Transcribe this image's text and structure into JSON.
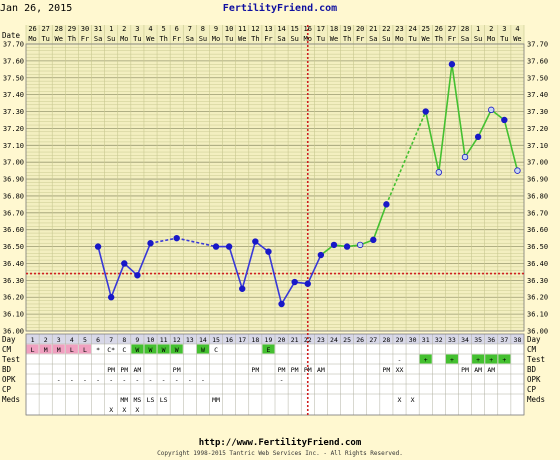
{
  "header": {
    "date_label": "Jan 26, 2015",
    "site": "FertilityFriend.com"
  },
  "footer": {
    "url": "http://www.FertilityFriend.com",
    "copyright": "Copyright 1998-2015 Tantric Web Services Inc. - All Rights Reserved."
  },
  "colors": {
    "grid_line": "#c8c890",
    "plot_bg": "#f3efc0",
    "row_bg": "#ffffff",
    "pre_ov_line": "#3838d8",
    "post_ov_line": "#44c030",
    "coverline": "#d02020",
    "ovulation_line": "#d02020",
    "menses": "#f0a0c0",
    "fertile_cm": "#44c030",
    "test_positive": "#44c030"
  },
  "chart_data": {
    "type": "line",
    "title": "",
    "xlabel": "",
    "ylabel": "",
    "row_labels": {
      "date": "Date",
      "day": "Day",
      "cm": "CM",
      "test": "Test",
      "bd": "BD",
      "opk": "OPK",
      "cp": "CP",
      "meds": "Meds"
    },
    "dates": [
      "26",
      "27",
      "28",
      "29",
      "30",
      "31",
      "1",
      "2",
      "3",
      "4",
      "5",
      "6",
      "7",
      "8",
      "9",
      "10",
      "11",
      "12",
      "13",
      "14",
      "15",
      "16",
      "17",
      "18",
      "19",
      "20",
      "21",
      "22",
      "23",
      "24",
      "25",
      "26",
      "27",
      "28",
      "1",
      "2",
      "3",
      "4"
    ],
    "weekdays": [
      "Mo",
      "Tu",
      "We",
      "Th",
      "Fr",
      "Sa",
      "Su",
      "Mo",
      "Tu",
      "We",
      "Th",
      "Fr",
      "Sa",
      "Su",
      "Mo",
      "Tu",
      "We",
      "Th",
      "Fr",
      "Sa",
      "Su",
      "Mo",
      "Tu",
      "We",
      "Th",
      "Fr",
      "Sa",
      "Su",
      "Mo",
      "Tu",
      "We",
      "Th",
      "Fr",
      "Sa",
      "Su",
      "Mo",
      "Tu",
      "We"
    ],
    "days": [
      "1",
      "2",
      "3",
      "4",
      "5",
      "6",
      "7",
      "8",
      "9",
      "10",
      "11",
      "12",
      "13",
      "14",
      "15",
      "16",
      "17",
      "18",
      "19",
      "20",
      "21",
      "22",
      "23",
      "24",
      "25",
      "26",
      "27",
      "28",
      "29",
      "30",
      "31",
      "32",
      "33",
      "34",
      "35",
      "36",
      "37",
      "38"
    ],
    "y_ticks": [
      "36.00",
      "36.10",
      "36.20",
      "36.30",
      "36.40",
      "36.50",
      "36.60",
      "36.70",
      "36.80",
      "36.90",
      "37.00",
      "37.10",
      "37.20",
      "37.30",
      "37.40",
      "37.50",
      "37.60",
      "37.70"
    ],
    "ylim": [
      36.0,
      37.7
    ],
    "coverline": 36.34,
    "ovulation_day": 22,
    "temps": [
      null,
      null,
      null,
      null,
      null,
      36.5,
      36.2,
      36.4,
      36.33,
      36.52,
      null,
      36.55,
      null,
      null,
      36.5,
      36.5,
      36.25,
      36.53,
      36.47,
      36.16,
      36.29,
      36.28,
      36.45,
      36.51,
      36.5,
      36.51,
      36.54,
      36.75,
      null,
      null,
      37.3,
      36.94,
      37.58,
      37.03,
      37.15,
      37.31,
      37.25,
      36.95
    ],
    "open_points": [
      25,
      31,
      33,
      35,
      37
    ],
    "cm": [
      "L",
      "M",
      "M",
      "L",
      "L",
      "*",
      "C*",
      "C",
      "W",
      "W",
      "W",
      "W",
      "",
      "W",
      "C",
      "",
      "",
      "",
      "E",
      "",
      "",
      "",
      "",
      "",
      "",
      "",
      "",
      "",
      "",
      "",
      "",
      "",
      "",
      "",
      "",
      "",
      "",
      ""
    ],
    "test": [
      "",
      "",
      "",
      "",
      "",
      "",
      "",
      "",
      "",
      "",
      "",
      "",
      "",
      "",
      "",
      "",
      "",
      "",
      "",
      "",
      "",
      "",
      "",
      "",
      "",
      "",
      "",
      "",
      "-",
      "",
      "+",
      "",
      "+",
      "",
      "+",
      "+",
      "+",
      ""
    ],
    "bd": [
      "",
      "",
      "",
      "",
      "",
      "",
      "PM",
      "PM",
      "AM",
      "",
      "",
      "PM",
      "",
      "",
      "",
      "",
      "",
      "PM",
      "",
      "PM",
      "PM",
      "PM",
      "AM",
      "",
      "",
      "",
      "",
      "PM",
      "XX",
      "",
      "",
      "",
      "",
      "PM",
      "AM",
      "AM",
      "",
      ""
    ],
    "opk": [
      "",
      "",
      "-",
      "-",
      "-",
      "-",
      "-",
      "-",
      "-",
      "-",
      "-",
      "-",
      "-",
      "-",
      "",
      "",
      "",
      "",
      "",
      "-",
      "",
      "",
      "",
      "",
      "",
      "",
      "",
      "",
      "",
      "",
      "",
      "",
      "",
      "",
      "",
      "",
      "",
      ""
    ],
    "cp": [
      "",
      "",
      "",
      "",
      "",
      "",
      "",
      "",
      "",
      "",
      "",
      "",
      "",
      "",
      "",
      "",
      "",
      "",
      "",
      "",
      "",
      "",
      "",
      "",
      "",
      "",
      "",
      "",
      "",
      "",
      "",
      "",
      "",
      "",
      "",
      "",
      "",
      ""
    ],
    "meds": [
      "",
      "",
      "",
      "",
      "",
      "",
      "",
      "MM",
      "MS",
      "LS",
      "LS",
      "",
      "",
      "",
      "MM",
      "",
      "",
      "",
      "",
      "",
      "",
      "",
      "",
      "",
      "",
      "",
      "",
      "",
      "X",
      "X",
      "",
      "",
      "",
      "",
      "",
      "",
      "",
      ""
    ],
    "meds_row2": [
      "",
      "",
      "",
      "",
      "",
      "",
      "X",
      "X",
      "X",
      "",
      "",
      "",
      "",
      "",
      "",
      "",
      "",
      "",
      "",
      "",
      "",
      "",
      "",
      "",
      "",
      "",
      "",
      "",
      "",
      "",
      "",
      "",
      "",
      "",
      "",
      "",
      "",
      ""
    ],
    "grid": true,
    "legend": "none"
  }
}
